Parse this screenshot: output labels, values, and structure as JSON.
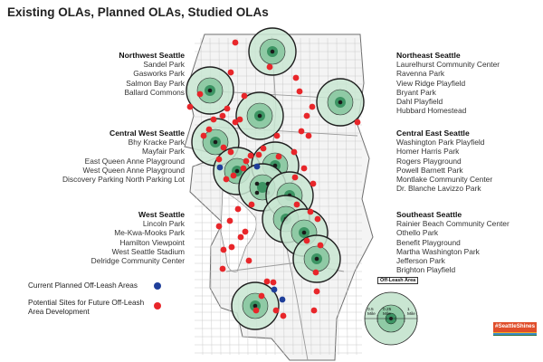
{
  "title": "Existing OLAs, Planned OLAs, Studied OLAs",
  "colors": {
    "buffer_outer": "#c9e6d2",
    "buffer_inner": "#8fcaa5",
    "park_core": "#3c9463",
    "ring_stroke": "#1e1e1e",
    "planned_dot": "#1f3f9a",
    "potential_dot": "#e8262a",
    "street_lines": "#bdbdbd",
    "boundary": "#6e6e6e"
  },
  "regions": {
    "northwest": {
      "name": "Northwest Seattle",
      "sites": [
        "Sandel Park",
        "Gasworks Park",
        "Salmon Bay Park",
        "Ballard Commons"
      ]
    },
    "central_west": {
      "name": "Central West Seattle",
      "sites": [
        "Bhy Kracke Park",
        "Mayfair Park",
        "East Queen Anne Playground",
        "West Queen Anne Playground",
        "Discovery Parking North Parking Lot"
      ]
    },
    "west": {
      "name": "West Seattle",
      "sites": [
        "Lincoln Park",
        "Me-Kwa-Mooks Park",
        "Hamilton Viewpoint",
        "West Seattle Stadium",
        "Delridge Community Center"
      ]
    },
    "northeast": {
      "name": "Northeast Seattle",
      "sites": [
        "Laurelhurst Community Center",
        "Ravenna Park",
        "View Ridge Playfield",
        "Bryant Park",
        "Dahl Playfield",
        "Hubbard Homestead"
      ]
    },
    "central_east": {
      "name": "Central East Seattle",
      "sites": [
        "Washington Park Playfield",
        "Homer Harris Park",
        "Rogers Playground",
        "Powell Barnett Park",
        "Montlake Community Center",
        "Dr. Blanche Lavizzo Park"
      ]
    },
    "southeast": {
      "name": "Southeast Seattle",
      "sites": [
        "Rainier Beach Community Center",
        "Othello Park",
        "Benefit Playground",
        "Martha Washington Park",
        "Jefferson Park",
        "Brighton Playfield"
      ]
    }
  },
  "legend": {
    "planned_label": "Current Planned Off-Leash Areas",
    "potential_label_1": "Potential Sites for Future Off-Leash",
    "potential_label_2": "Area Development"
  },
  "scale": {
    "title": "Off-Leash Area",
    "half_mile": "0.5",
    "half_mile_unit": "Mile",
    "quarter_mile": "0.25",
    "quarter_mile_unit": "Mile",
    "one_mile": "1",
    "one_mile_unit": "Mile"
  },
  "brand": {
    "text": "#SeattleShines",
    "stripe_colors": [
      "#e04e2b",
      "#f5a623",
      "#3d8ec9",
      "#2b6c3a"
    ]
  },
  "existing_olas": [
    {
      "id": "ola-north",
      "count": 1
    },
    {
      "id": "ola-northwest",
      "count": 1
    },
    {
      "id": "ola-northeast",
      "count": 1
    },
    {
      "id": "ola-green-lake",
      "count": 1
    },
    {
      "id": "ola-magnolia",
      "count": 1
    },
    {
      "id": "ola-interbay",
      "count": 1
    },
    {
      "id": "ola-queen-anne",
      "count": 1
    },
    {
      "id": "ola-downtown",
      "count": 4
    },
    {
      "id": "ola-central",
      "count": 1
    },
    {
      "id": "ola-jose-rizal",
      "count": 1
    },
    {
      "id": "ola-genesee",
      "count": 1
    },
    {
      "id": "ola-southeast",
      "count": 1
    },
    {
      "id": "ola-westcrest",
      "count": 1
    }
  ],
  "planned_site_count": 4,
  "potential_site_count": 60
}
